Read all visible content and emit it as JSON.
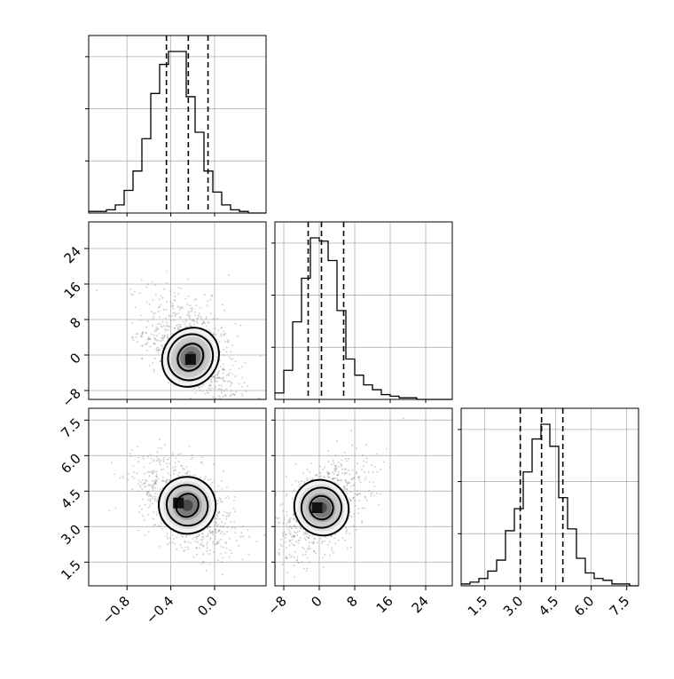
{
  "chart_data": {
    "type": "corner",
    "grid": true,
    "parameters": [
      {
        "ticks": [
          -0.8,
          -0.4,
          0.0
        ],
        "tick_labels": [
          "−0.8",
          "−0.4",
          "0.0"
        ],
        "range": [
          -1.15,
          0.47
        ],
        "quantiles": [
          -0.44,
          -0.24,
          -0.06
        ]
      },
      {
        "ticks": [
          -8,
          0,
          8,
          16,
          24
        ],
        "tick_labels": [
          "−8",
          "0",
          "8",
          "16",
          "24"
        ],
        "range": [
          -10,
          30
        ],
        "quantiles": [
          -2.5,
          0.5,
          5.5
        ]
      },
      {
        "ticks": [
          1.5,
          3.0,
          4.5,
          6.0,
          7.5
        ],
        "tick_labels": [
          "1.5",
          "3.0",
          "4.5",
          "6.0",
          "7.5"
        ],
        "range": [
          0.5,
          8.0
        ],
        "quantiles": [
          3.0,
          3.9,
          4.8
        ]
      }
    ],
    "histograms": [
      {
        "param": 0,
        "edges_start": -1.15,
        "bin_width": 0.081,
        "counts": [
          1,
          1,
          2,
          5,
          14,
          26,
          46,
          74,
          92,
          100,
          100,
          72,
          50,
          26,
          13,
          5,
          2,
          1,
          0,
          0
        ]
      },
      {
        "param": 1,
        "edges_start": -10,
        "bin_width": 2,
        "counts": [
          4,
          18,
          48,
          75,
          100,
          98,
          86,
          55,
          25,
          15,
          9,
          6,
          3,
          2,
          1,
          1,
          0,
          0,
          0,
          0
        ]
      },
      {
        "param": 2,
        "edges_start": 0.5,
        "bin_width": 0.375,
        "counts": [
          1,
          2,
          4,
          8,
          14,
          30,
          42,
          62,
          80,
          88,
          76,
          48,
          31,
          15,
          7,
          4,
          3,
          1,
          1,
          0
        ]
      }
    ],
    "pairs": [
      {
        "x_param": 0,
        "y_param": 1,
        "x_center": -0.22,
        "y_center": -0.5,
        "density_peak": [
          -0.22,
          -1.0
        ],
        "contour_levels": [
          {
            "level": 0.39,
            "sx": 0.11,
            "sy": 3.2
          },
          {
            "level": 0.86,
            "sx": 0.2,
            "sy": 5.3
          },
          {
            "level": 1.0,
            "sx": 0.25,
            "sy": 6.9
          }
        ]
      },
      {
        "x_param": 0,
        "y_param": 2,
        "x_center": -0.25,
        "y_center": 3.9,
        "density_peak": [
          -0.33,
          4.0
        ],
        "contour_levels": [
          {
            "level": 0.39,
            "sx": 0.1,
            "sy": 0.5
          },
          {
            "level": 0.86,
            "sx": 0.19,
            "sy": 0.85
          },
          {
            "level": 1.0,
            "sx": 0.26,
            "sy": 1.2
          }
        ]
      },
      {
        "x_param": 1,
        "y_param": 2,
        "x_center": 0.5,
        "y_center": 3.8,
        "density_peak": [
          -0.5,
          3.8
        ],
        "contour_levels": [
          {
            "level": 0.39,
            "sx": 2.6,
            "sy": 0.5
          },
          {
            "level": 0.86,
            "sx": 4.5,
            "sy": 0.85
          },
          {
            "level": 1.0,
            "sx": 6.0,
            "sy": 1.2
          }
        ]
      }
    ]
  }
}
